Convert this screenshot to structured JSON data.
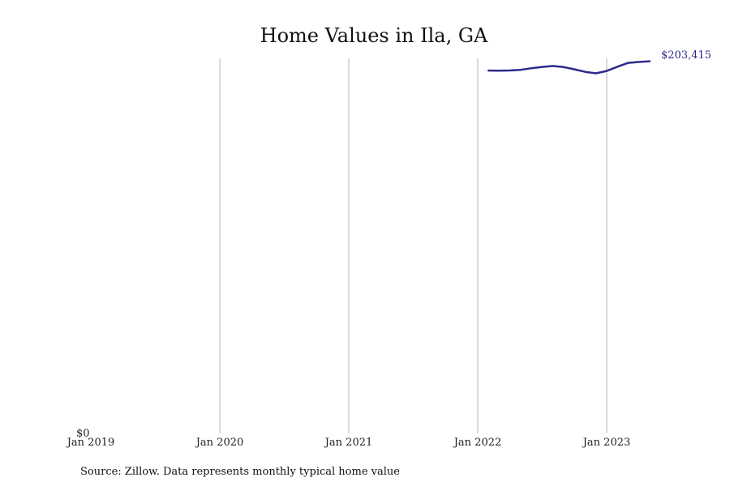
{
  "chart_data": {
    "type": "line",
    "title": "Home Values in Ila, GA",
    "xlabel": "",
    "ylabel": "",
    "x_ticks": [
      "Jan 2019",
      "Jan 2020",
      "Jan 2021",
      "Jan 2022",
      "Jan 2023"
    ],
    "y_tick_labels": [
      "$0"
    ],
    "ylim": [
      0,
      205000
    ],
    "xlim": [
      "2019-01",
      "2023-12"
    ],
    "grid": "vertical",
    "legend": "none",
    "line_color": "#2e2a8c",
    "series": [
      {
        "x": [
          "2022-02",
          "2022-03",
          "2022-04",
          "2022-05",
          "2022-06",
          "2022-07",
          "2022-08",
          "2022-09",
          "2022-10",
          "2022-11",
          "2022-12",
          "2023-01",
          "2023-02",
          "2023-03",
          "2023-04",
          "2023-05"
        ],
        "values": [
          198300,
          198250,
          198350,
          198700,
          199600,
          200300,
          200800,
          200200,
          199000,
          197600,
          196800,
          198100,
          200400,
          202500,
          203000,
          203415
        ]
      }
    ],
    "end_label": "$203,415",
    "source": "Source: Zillow. Data represents monthly typical home value"
  }
}
